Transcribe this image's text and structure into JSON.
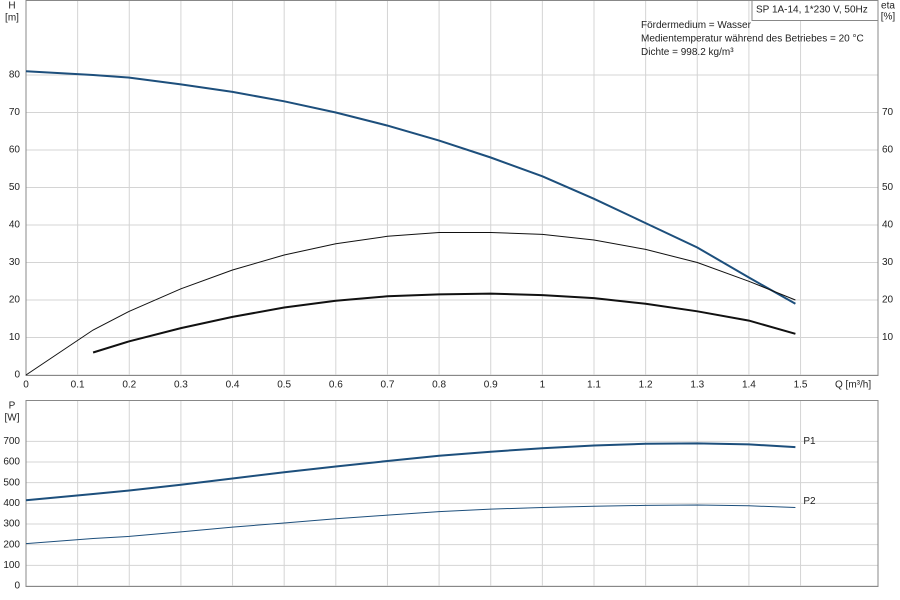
{
  "chart_data": [
    {
      "type": "line",
      "ylabel": "H",
      "yunit": "[m]",
      "y2label": "eta",
      "y2unit": "[%]",
      "xlabel": "Q [m³/h]",
      "info": [
        "SP 1A-14, 1*230 V, 50Hz",
        "Fördermedium = Wasser",
        "Medientemperatur während des Betriebes = 20 °C",
        "Dichte = 998.2 kg/m³"
      ],
      "x": [
        0,
        0.13,
        0.2,
        0.3,
        0.4,
        0.5,
        0.6,
        0.7,
        0.8,
        0.9,
        1.0,
        1.1,
        1.2,
        1.3,
        1.4,
        1.49
      ],
      "xlim": [
        0,
        1.65
      ],
      "xticks": [
        0,
        0.1,
        0.2,
        0.3,
        0.4,
        0.5,
        0.6,
        0.7,
        0.8,
        0.9,
        1.0,
        1.1,
        1.2,
        1.3,
        1.4,
        1.5
      ],
      "ylim": [
        0,
        100
      ],
      "yticks": [
        0,
        10,
        20,
        30,
        40,
        50,
        60,
        70,
        80
      ],
      "y2lim": [
        0,
        100
      ],
      "y2ticks": [
        10,
        20,
        30,
        40,
        50,
        60,
        70
      ],
      "grid": true,
      "series": [
        {
          "color": "#1d4f7c",
          "width": 2,
          "values": [
            81,
            80,
            79.3,
            77.5,
            75.5,
            73,
            70,
            66.5,
            62.5,
            58,
            53,
            47,
            40.5,
            34,
            26,
            19
          ]
        },
        {
          "color": "#111111",
          "width": 1,
          "axis": "y2",
          "values": [
            0,
            12,
            17,
            23,
            28,
            32,
            35,
            37,
            38,
            38,
            37.5,
            36,
            33.5,
            30,
            25,
            20
          ]
        },
        {
          "color": "#111111",
          "width": 2,
          "axis": "y2",
          "values": [
            null,
            6,
            9,
            12.5,
            15.5,
            18,
            19.8,
            21,
            21.5,
            21.7,
            21.3,
            20.5,
            19,
            17,
            14.5,
            11
          ]
        }
      ]
    },
    {
      "type": "line",
      "ylabel": "P",
      "yunit": "[W]",
      "x": [
        0,
        0.13,
        0.2,
        0.3,
        0.4,
        0.5,
        0.6,
        0.7,
        0.8,
        0.9,
        1.0,
        1.1,
        1.2,
        1.3,
        1.4,
        1.49
      ],
      "xlim": [
        0,
        1.65
      ],
      "ylim": [
        0,
        900
      ],
      "yticks": [
        0,
        100,
        200,
        300,
        400,
        500,
        600,
        700
      ],
      "grid": true,
      "series": [
        {
          "name": "P1",
          "color": "#1d4f7c",
          "width": 2,
          "values": [
            415,
            445,
            462,
            490,
            520,
            550,
            578,
            605,
            630,
            650,
            667,
            680,
            688,
            690,
            685,
            672
          ]
        },
        {
          "name": "P2",
          "color": "#1d4f7c",
          "width": 1,
          "values": [
            205,
            230,
            240,
            262,
            285,
            305,
            325,
            343,
            360,
            372,
            380,
            386,
            390,
            392,
            388,
            380
          ]
        }
      ]
    }
  ]
}
